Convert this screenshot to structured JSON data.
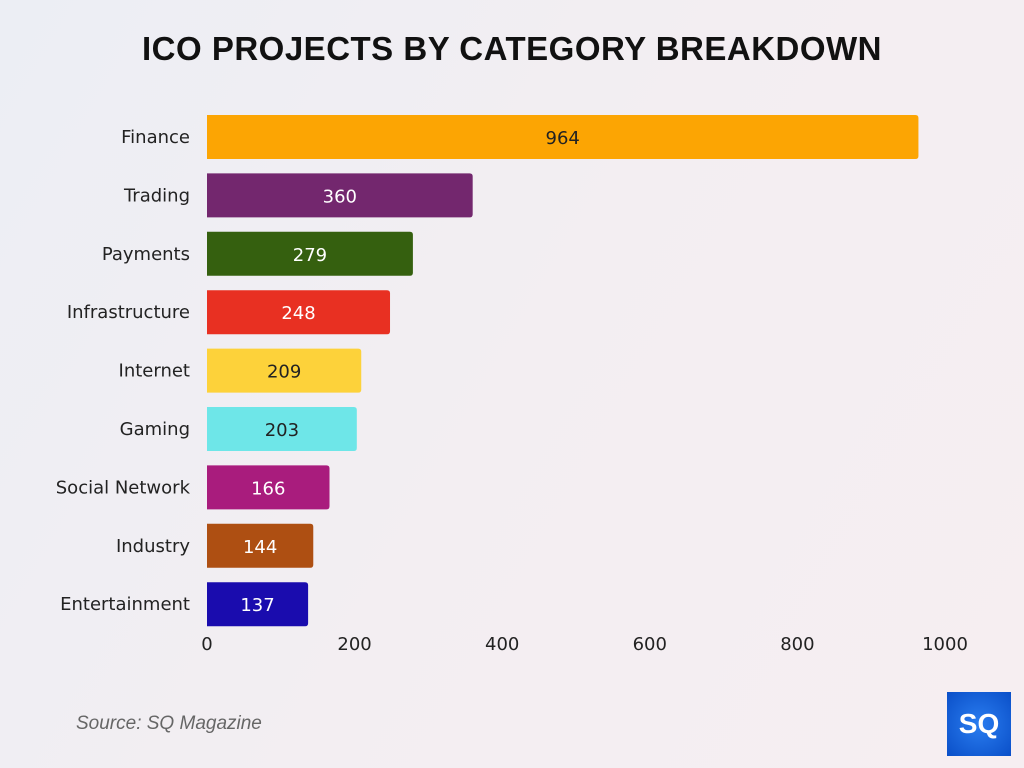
{
  "chart_data": {
    "type": "bar",
    "orientation": "horizontal",
    "title": "ICO PROJECTS BY CATEGORY BREAKDOWN",
    "categories": [
      "Finance",
      "Trading",
      "Payments",
      "Infrastructure",
      "Internet",
      "Gaming",
      "Social Network",
      "Industry",
      "Entertainment"
    ],
    "values": [
      964,
      360,
      279,
      248,
      209,
      203,
      166,
      144,
      137
    ],
    "colors": [
      "#fca503",
      "#73276e",
      "#35600f",
      "#e83022",
      "#fdd23a",
      "#6ee6e8",
      "#a91c7d",
      "#ae4f12",
      "#1a0cae"
    ],
    "label_colors": [
      "#222222",
      "#ffffff",
      "#ffffff",
      "#ffffff",
      "#222222",
      "#222222",
      "#ffffff",
      "#ffffff",
      "#ffffff"
    ],
    "xticks": [
      0,
      200,
      400,
      600,
      800,
      1000
    ],
    "xlim": [
      0,
      1000
    ],
    "grid": false,
    "xlabel": "",
    "ylabel": ""
  },
  "source": "Source: SQ Magazine",
  "logo_text": "SQ"
}
